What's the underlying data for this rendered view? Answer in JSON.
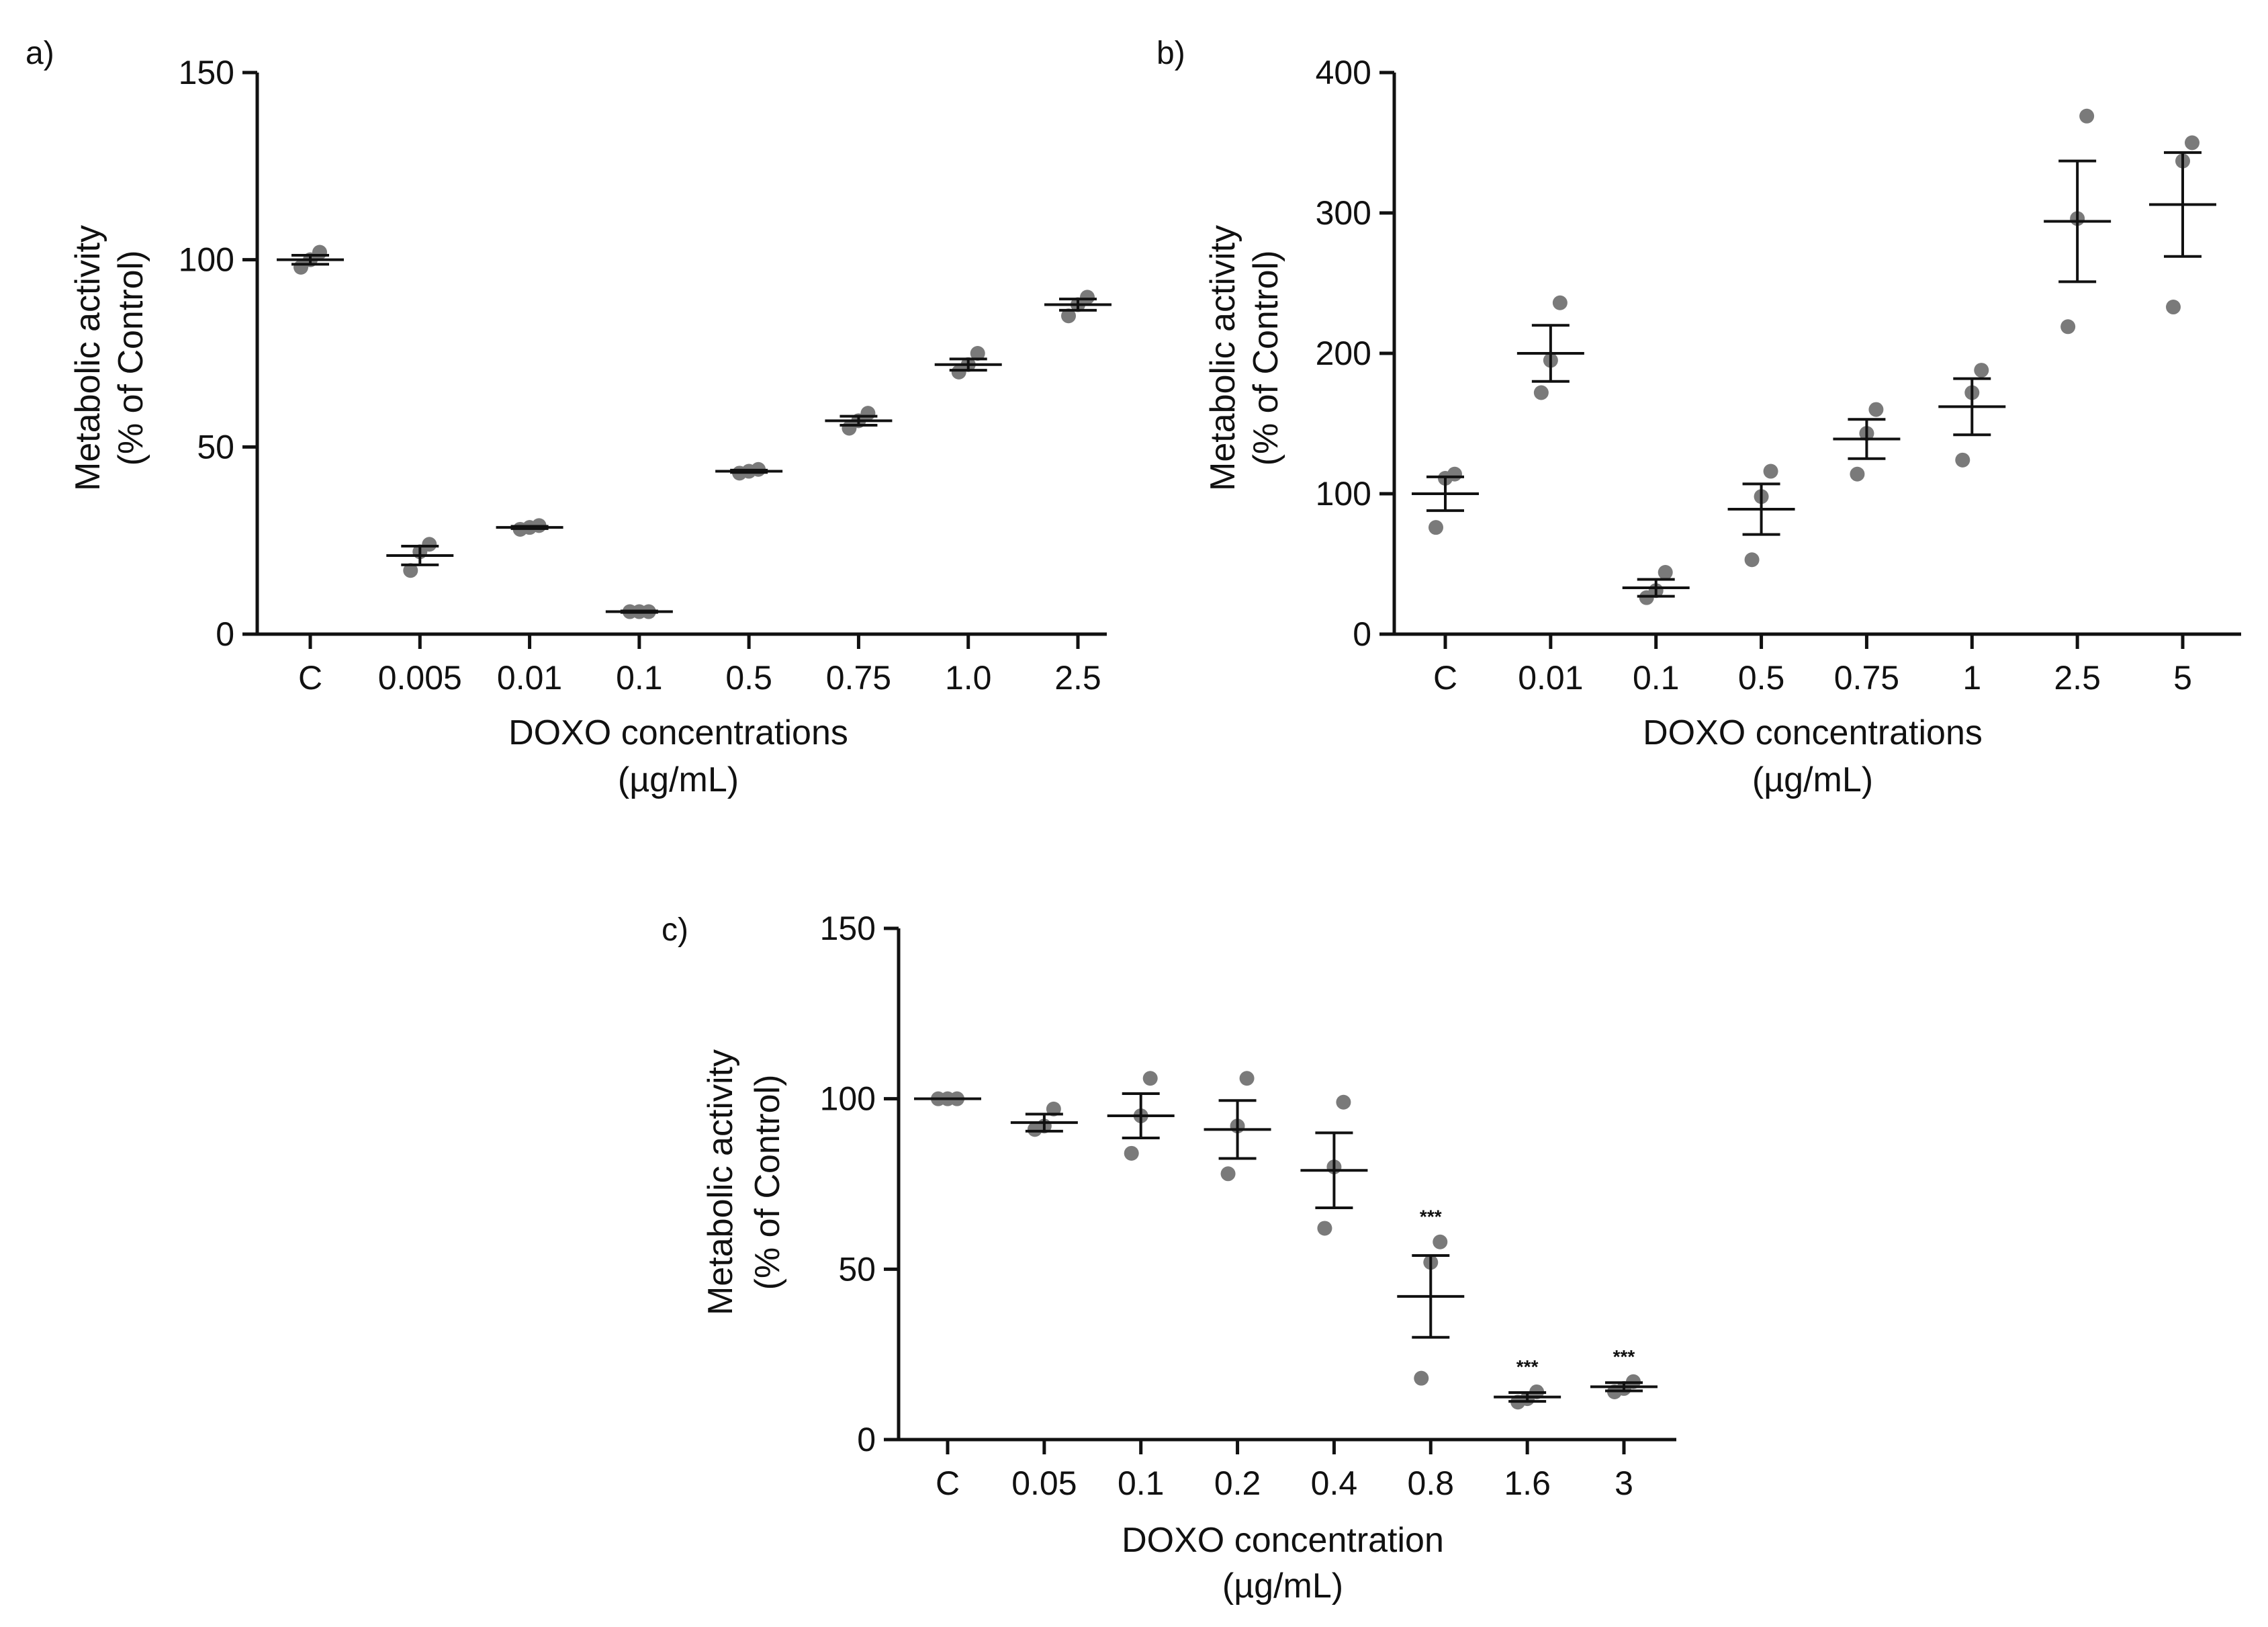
{
  "chart_data": [
    {
      "type": "scatter",
      "panel_label": "a)",
      "xlabel_line1": "DOXO concentrations",
      "xlabel_line2": "(µg/mL)",
      "ylabel_line1": "Metabolic activity",
      "ylabel_line2": "(% of Control)",
      "ylim": [
        0,
        150
      ],
      "yticks": [
        0,
        50,
        100,
        150
      ],
      "categories": [
        "C",
        "0.005",
        "0.01",
        "0.1",
        "0.5",
        "0.75",
        "1.0",
        "2.5"
      ],
      "points": [
        [
          98,
          100,
          102
        ],
        [
          17,
          22,
          24
        ],
        [
          28,
          28.5,
          29
        ],
        [
          6,
          6,
          6
        ],
        [
          43,
          43.5,
          44
        ],
        [
          55,
          57,
          59
        ],
        [
          70,
          72,
          75
        ],
        [
          85,
          88,
          90
        ]
      ],
      "mean": [
        100,
        21,
        28.5,
        6,
        43.5,
        57,
        72,
        88
      ],
      "err": [
        1.2,
        2.5,
        0.3,
        0.2,
        0.3,
        1.2,
        1.5,
        1.5
      ],
      "sig": [
        "",
        "",
        "",
        "",
        "",
        "",
        "",
        ""
      ]
    },
    {
      "type": "scatter",
      "panel_label": "b)",
      "xlabel_line1": "DOXO concentrations",
      "xlabel_line2": "(µg/mL)",
      "ylabel_line1": "Metabolic activity",
      "ylabel_line2": "(% of Control)",
      "ylim": [
        0,
        400
      ],
      "yticks": [
        0,
        100,
        200,
        300,
        400
      ],
      "categories": [
        "C",
        "0.01",
        "0.1",
        "0.5",
        "0.75",
        "1",
        "2.5",
        "5"
      ],
      "points": [
        [
          76,
          111,
          114
        ],
        [
          172,
          195,
          236
        ],
        [
          26,
          31,
          44
        ],
        [
          53,
          98,
          116
        ],
        [
          114,
          143,
          160
        ],
        [
          124,
          172,
          188
        ],
        [
          219,
          296,
          369
        ],
        [
          233,
          337,
          350
        ]
      ],
      "mean": [
        100,
        200,
        33,
        89,
        139,
        162,
        294,
        306
      ],
      "err": [
        12,
        20,
        6,
        18,
        14,
        20,
        43,
        37
      ],
      "sig": [
        "",
        "",
        "",
        "",
        "",
        "",
        "",
        ""
      ]
    },
    {
      "type": "scatter",
      "panel_label": "c)",
      "xlabel_line1": "DOXO concentration",
      "xlabel_line2": "(µg/mL)",
      "ylabel_line1": "Metabolic activity",
      "ylabel_line2": "(% of Control)",
      "ylim": [
        0,
        150
      ],
      "yticks": [
        0,
        50,
        100,
        150
      ],
      "categories": [
        "C",
        "0.05",
        "0.1",
        "0.2",
        "0.4",
        "0.8",
        "1.6",
        "3"
      ],
      "points": [
        [
          100,
          100,
          100
        ],
        [
          91,
          92,
          97
        ],
        [
          84,
          95,
          106
        ],
        [
          78,
          92,
          106
        ],
        [
          62,
          80,
          99
        ],
        [
          18,
          52,
          58
        ],
        [
          11,
          12,
          14
        ],
        [
          14,
          15,
          17
        ]
      ],
      "mean": [
        100,
        93,
        95,
        91,
        79,
        42,
        12.5,
        15.5
      ],
      "err": [
        0,
        2.5,
        6.5,
        8.5,
        11,
        12,
        1.3,
        1.2
      ],
      "sig": [
        "",
        "",
        "",
        "",
        "",
        "***",
        "***",
        "***"
      ]
    }
  ]
}
